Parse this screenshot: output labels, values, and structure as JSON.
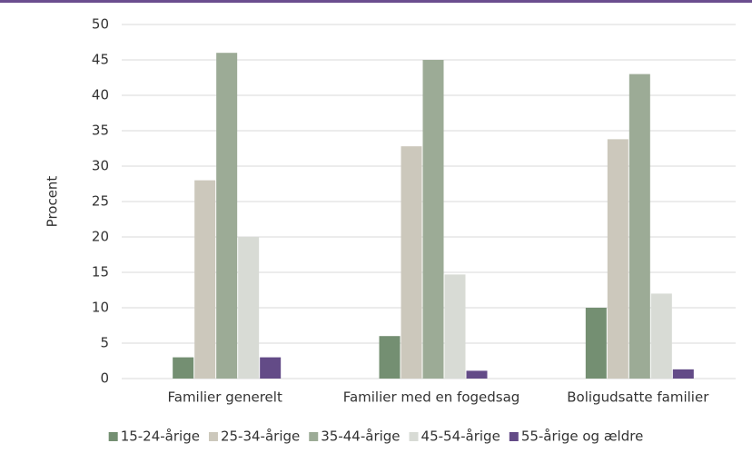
{
  "chart_data": {
    "type": "bar",
    "y_label": "Procent",
    "categories": [
      "Familier generelt",
      "Familier med en fogedsag",
      "Boligudsatte familier"
    ],
    "series": [
      {
        "name": "15-24-årige",
        "color": "#748f72",
        "values": [
          3,
          6,
          10
        ]
      },
      {
        "name": "25-34-årige",
        "color": "#ccc8bc",
        "values": [
          28,
          32.8,
          33.8
        ]
      },
      {
        "name": "35-44-årige",
        "color": "#9cab96",
        "values": [
          46,
          45,
          43
        ]
      },
      {
        "name": "45-54-årige",
        "color": "#d8dbd5",
        "values": [
          20,
          14.7,
          12
        ]
      },
      {
        "name": "55-årige og ældre",
        "color": "#634b87",
        "values": [
          3,
          1.1,
          1.3
        ]
      }
    ],
    "ylim": [
      0,
      50
    ],
    "yticks": [
      0,
      5,
      10,
      15,
      20,
      25,
      30,
      35,
      40,
      45,
      50
    ],
    "grid": true,
    "legend": "bottom"
  }
}
